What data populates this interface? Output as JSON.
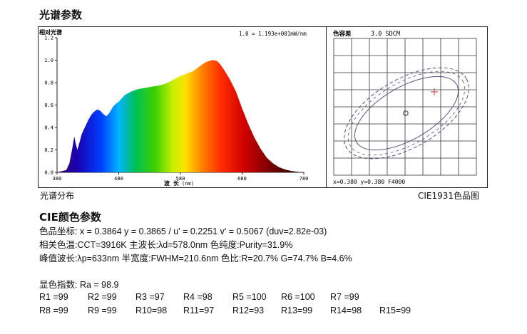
{
  "titles": {
    "spectrum_section": "光谱参数",
    "cie_section": "CIE颜色参数"
  },
  "spectrum_chart": {
    "ylabel": "相对光谱",
    "xlabel": "波 长",
    "xunit": "(nm)",
    "scale_note": "1.0 = 1.193e+001mW/nm",
    "caption": "光谱分布"
  },
  "chromaticity_chart": {
    "title": "色容差",
    "sdcm": "3.0 SDCM",
    "footer": "x=0.380 y=0.380 F4000",
    "caption": "CIE1931色品图"
  },
  "chart_data": {
    "type": "area",
    "x_range": [
      380,
      780
    ],
    "y_range": [
      0,
      1.2
    ],
    "x_ticks": [
      380,
      480,
      580,
      680,
      780
    ],
    "y_ticks": [
      "0.0",
      "0.2",
      "0.4",
      "0.6",
      "0.8",
      "1.0",
      "1.2"
    ],
    "grid": false,
    "x": [
      380,
      395,
      400,
      405,
      408,
      410,
      413,
      415,
      418,
      420,
      425,
      430,
      435,
      440,
      445,
      450,
      455,
      460,
      465,
      470,
      475,
      480,
      485,
      490,
      500,
      510,
      520,
      530,
      540,
      550,
      560,
      570,
      580,
      590,
      600,
      610,
      620,
      630,
      635,
      640,
      645,
      650,
      660,
      670,
      680,
      690,
      700,
      710,
      720,
      730,
      740,
      750,
      760,
      770,
      780
    ],
    "y": [
      0.0,
      0.02,
      0.08,
      0.22,
      0.32,
      0.26,
      0.2,
      0.24,
      0.3,
      0.34,
      0.4,
      0.46,
      0.51,
      0.54,
      0.56,
      0.55,
      0.52,
      0.5,
      0.53,
      0.58,
      0.61,
      0.63,
      0.66,
      0.69,
      0.72,
      0.74,
      0.75,
      0.76,
      0.77,
      0.78,
      0.8,
      0.83,
      0.86,
      0.88,
      0.9,
      0.94,
      0.98,
      1.0,
      1.0,
      0.99,
      0.96,
      0.92,
      0.83,
      0.72,
      0.57,
      0.43,
      0.31,
      0.21,
      0.13,
      0.08,
      0.045,
      0.025,
      0.012,
      0.005,
      0.0
    ]
  },
  "cie": {
    "lines": [
      "色品坐标: x = 0.3864 y = 0.3865 / u' = 0.2251 v' = 0.5067 (duv=2.82e-03)",
      "相关色温:CCT=3916K    主波长:λd=578.0nm     色纯度:Purity=31.9%",
      "峰值波长:λp=633nm  半宽度:FWHM=210.6nm   色比:R=20.7% G=74.7% B=4.6%"
    ],
    "ra": "显色指数: Ra = 98.9",
    "ri_row1": [
      "R1 =99",
      "R2 =99",
      "R3 =97",
      "R4 =98",
      "R5 =100",
      "R6 =100",
      "R7 =99"
    ],
    "ri_row2": [
      "R8 =99",
      "R9 =99",
      "R10=98",
      "R11=97",
      "R12=93",
      "R13=99",
      "R14=98",
      "R15=99"
    ]
  }
}
